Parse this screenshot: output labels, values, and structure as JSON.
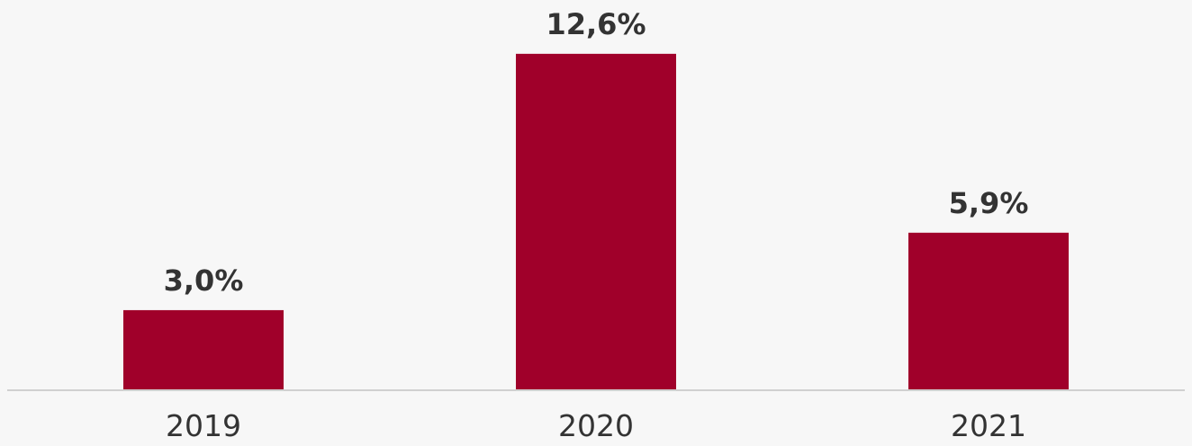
{
  "chart_data": {
    "type": "bar",
    "categories": [
      "2019",
      "2020",
      "2021"
    ],
    "values": [
      3.0,
      12.6,
      5.9
    ],
    "value_labels": [
      "3,0%",
      "12,6%",
      "5,9%"
    ],
    "title": "",
    "xlabel": "",
    "ylabel": "",
    "ylim": [
      0,
      13.1
    ],
    "grid": false,
    "legend": "none",
    "bar_color": "#a0002a",
    "axis_color": "#d0d0d0",
    "text_color": "#333333",
    "background": "#f7f7f7"
  }
}
